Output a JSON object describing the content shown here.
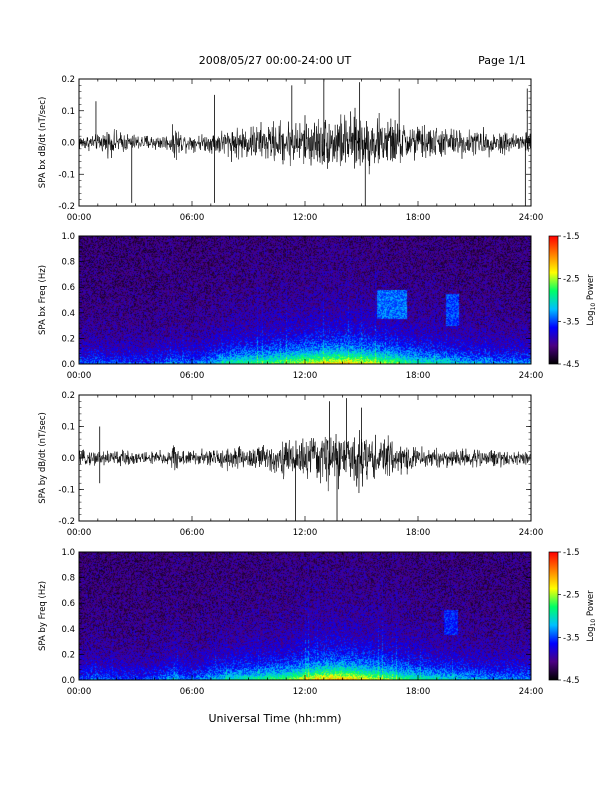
{
  "header": {
    "title": "2008/05/27  00:00-24:00 UT",
    "page": "Page 1/1"
  },
  "footer": {
    "xlabel": "Universal Time (hh:mm)"
  },
  "colorbar": {
    "label": "Log",
    "label_sub": "10",
    "label_suffix": " Power",
    "ticks": [
      "-1.5",
      "-2.5",
      "-3.5",
      "-4.5"
    ],
    "range": [
      -4.5,
      -1.5
    ],
    "colormap": [
      "#000000",
      "#4b0082",
      "#0000ff",
      "#00bfff",
      "#00ff66",
      "#ffff00",
      "#ff8000",
      "#ff0000"
    ]
  },
  "chart_data": [
    {
      "type": "line",
      "ylabel": "SPA bx dB/dt (nT/sec)",
      "x_ticks": [
        "00:00",
        "06:00",
        "12:00",
        "18:00",
        "24:00"
      ],
      "y_ticks": [
        "0.2",
        "0.1",
        "0.0",
        "-0.1",
        "-0.2"
      ],
      "xlim": [
        0,
        24
      ],
      "ylim": [
        -0.2,
        0.2
      ],
      "line_color": "#000000",
      "envelope": {
        "hours": [
          0,
          1,
          1.5,
          3,
          4.8,
          5.1,
          5.5,
          6.5,
          7.3,
          8,
          9,
          10,
          11,
          12,
          13,
          14,
          15,
          16,
          17,
          18,
          19,
          20,
          21,
          22,
          23,
          24
        ],
        "amplitude": [
          0.03,
          0.03,
          0.05,
          0.03,
          0.03,
          0.07,
          0.035,
          0.03,
          0.045,
          0.06,
          0.065,
          0.075,
          0.085,
          0.095,
          0.1,
          0.11,
          0.11,
          0.1,
          0.085,
          0.07,
          0.06,
          0.055,
          0.05,
          0.045,
          0.045,
          0.045
        ]
      },
      "spikes": [
        {
          "hour": 0.9,
          "value": 0.13
        },
        {
          "hour": 2.8,
          "value": -0.19
        },
        {
          "hour": 7.2,
          "value": -0.19
        },
        {
          "hour": 7.2,
          "value": 0.15
        },
        {
          "hour": 11.3,
          "value": 0.18
        },
        {
          "hour": 13.0,
          "value": 0.2
        },
        {
          "hour": 14.9,
          "value": 0.19
        },
        {
          "hour": 15.2,
          "value": -0.2
        },
        {
          "hour": 17.0,
          "value": 0.17
        },
        {
          "hour": 23.7,
          "value": -0.2
        },
        {
          "hour": 23.8,
          "value": 0.17
        }
      ]
    },
    {
      "type": "heatmap",
      "ylabel": "SPA bx Freq (Hz)",
      "x_ticks": [
        "00:00",
        "06:00",
        "12:00",
        "18:00",
        "24:00"
      ],
      "y_ticks": [
        "1.0",
        "0.8",
        "0.6",
        "0.4",
        "0.2",
        "0.0"
      ],
      "xlim": [
        0,
        24
      ],
      "ylim": [
        0,
        1.0
      ],
      "zlim": [
        -4.5,
        -1.5
      ],
      "activity": {
        "hours": [
          0,
          1,
          2,
          4,
          5,
          6,
          7,
          8,
          9,
          10,
          11,
          12,
          13,
          14,
          15,
          16,
          17,
          18,
          19,
          20,
          21,
          22,
          23,
          24
        ],
        "level": [
          0.3,
          0.35,
          0.3,
          0.3,
          0.4,
          0.35,
          0.45,
          0.6,
          0.65,
          0.7,
          0.75,
          0.85,
          0.9,
          0.95,
          0.9,
          0.8,
          0.7,
          0.6,
          0.55,
          0.5,
          0.45,
          0.4,
          0.4,
          0.4
        ]
      },
      "features": [
        {
          "hour_start": 15.8,
          "hour_end": 17.4,
          "freq_low": 0.35,
          "freq_high": 0.58,
          "level": -3.4
        },
        {
          "hour_start": 19.5,
          "hour_end": 20.2,
          "freq_low": 0.3,
          "freq_high": 0.55,
          "level": -3.5
        }
      ]
    },
    {
      "type": "line",
      "ylabel": "SPA by dB/dt (nT/sec)",
      "x_ticks": [
        "00:00",
        "06:00",
        "12:00",
        "18:00",
        "24:00"
      ],
      "y_ticks": [
        "0.2",
        "0.1",
        "0.0",
        "-0.1",
        "-0.2"
      ],
      "xlim": [
        0,
        24
      ],
      "ylim": [
        -0.2,
        0.2
      ],
      "line_color": "#000000",
      "envelope": {
        "hours": [
          0,
          1,
          1.5,
          3,
          4.8,
          5.1,
          5.5,
          6.5,
          7.3,
          8,
          9,
          10,
          11,
          12,
          13,
          14,
          15,
          16,
          17,
          18,
          19,
          20,
          21,
          22,
          23,
          24
        ],
        "amplitude": [
          0.025,
          0.03,
          0.035,
          0.025,
          0.03,
          0.06,
          0.03,
          0.03,
          0.035,
          0.045,
          0.05,
          0.055,
          0.07,
          0.08,
          0.1,
          0.11,
          0.1,
          0.08,
          0.06,
          0.045,
          0.04,
          0.035,
          0.035,
          0.03,
          0.03,
          0.03
        ]
      },
      "spikes": [
        {
          "hour": 1.1,
          "value": 0.1
        },
        {
          "hour": 1.1,
          "value": -0.08
        },
        {
          "hour": 11.5,
          "value": -0.2
        },
        {
          "hour": 13.3,
          "value": 0.18
        },
        {
          "hour": 13.7,
          "value": -0.2
        },
        {
          "hour": 14.2,
          "value": 0.19
        },
        {
          "hour": 15.0,
          "value": 0.16
        }
      ]
    },
    {
      "type": "heatmap",
      "ylabel": "SPA by Freq (Hz)",
      "x_ticks": [
        "00:00",
        "06:00",
        "12:00",
        "18:00",
        "24:00"
      ],
      "y_ticks": [
        "1.0",
        "0.8",
        "0.6",
        "0.4",
        "0.2",
        "0.0"
      ],
      "xlim": [
        0,
        24
      ],
      "ylim": [
        0,
        1.0
      ],
      "zlim": [
        -4.5,
        -1.5
      ],
      "activity": {
        "hours": [
          0,
          1,
          2,
          4,
          5,
          6,
          7,
          8,
          9,
          10,
          11,
          12,
          13,
          14,
          15,
          16,
          17,
          18,
          19,
          20,
          21,
          22,
          23,
          24
        ],
        "level": [
          0.3,
          0.35,
          0.3,
          0.3,
          0.45,
          0.35,
          0.45,
          0.55,
          0.6,
          0.65,
          0.7,
          0.85,
          0.95,
          1.0,
          0.9,
          0.8,
          0.7,
          0.6,
          0.55,
          0.5,
          0.45,
          0.4,
          0.4,
          0.4
        ]
      },
      "features": [
        {
          "hour_start": 19.4,
          "hour_end": 20.1,
          "freq_low": 0.35,
          "freq_high": 0.55,
          "level": -3.6
        }
      ]
    }
  ]
}
